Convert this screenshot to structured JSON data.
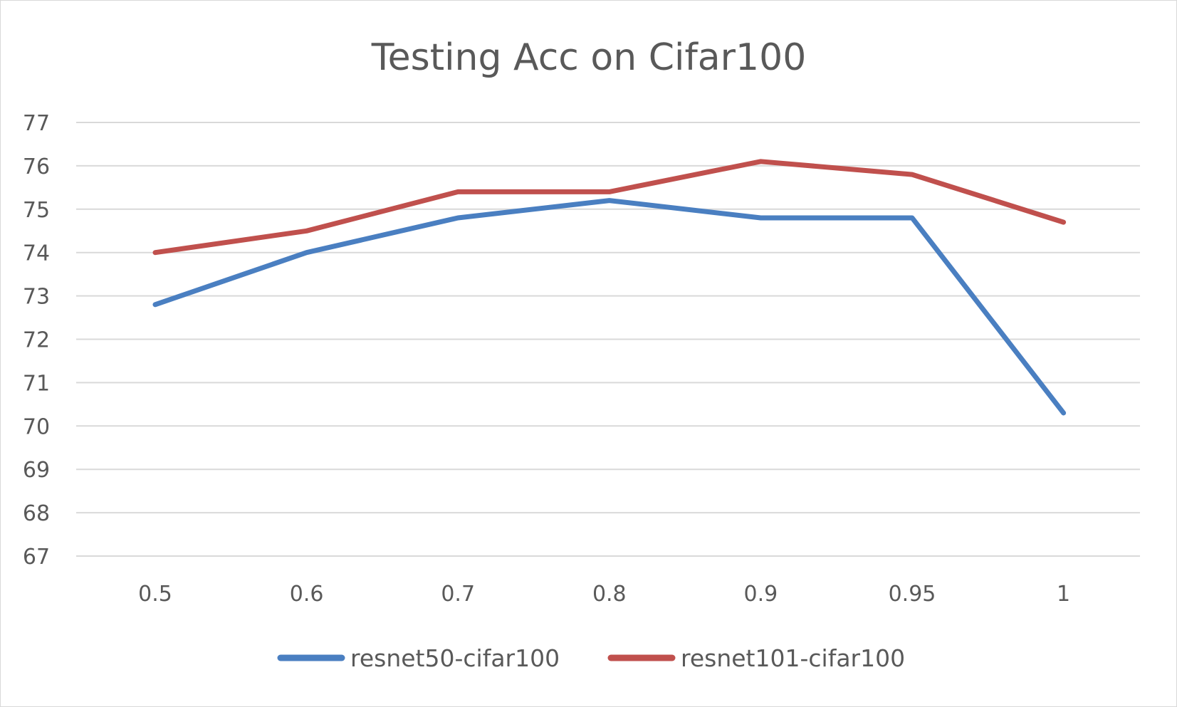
{
  "chart_data": {
    "type": "line",
    "title": "Testing Acc on Cifar100",
    "xlabel": "",
    "ylabel": "",
    "categories": [
      "0.5",
      "0.6",
      "0.7",
      "0.8",
      "0.9",
      "0.95",
      "1"
    ],
    "ylim": [
      67,
      77
    ],
    "yticks": [
      77,
      76,
      75,
      74,
      73,
      72,
      71,
      70,
      69,
      68,
      67
    ],
    "grid": true,
    "legend_position": "bottom",
    "series": [
      {
        "name": "resnet50-cifar100",
        "color": "#4a7fc1",
        "values": [
          72.8,
          74.0,
          74.8,
          75.2,
          74.8,
          74.8,
          70.3
        ]
      },
      {
        "name": "resnet101-cifar100",
        "color": "#c0504d",
        "values": [
          74.0,
          74.5,
          75.4,
          75.4,
          76.1,
          75.8,
          74.7
        ]
      }
    ]
  }
}
